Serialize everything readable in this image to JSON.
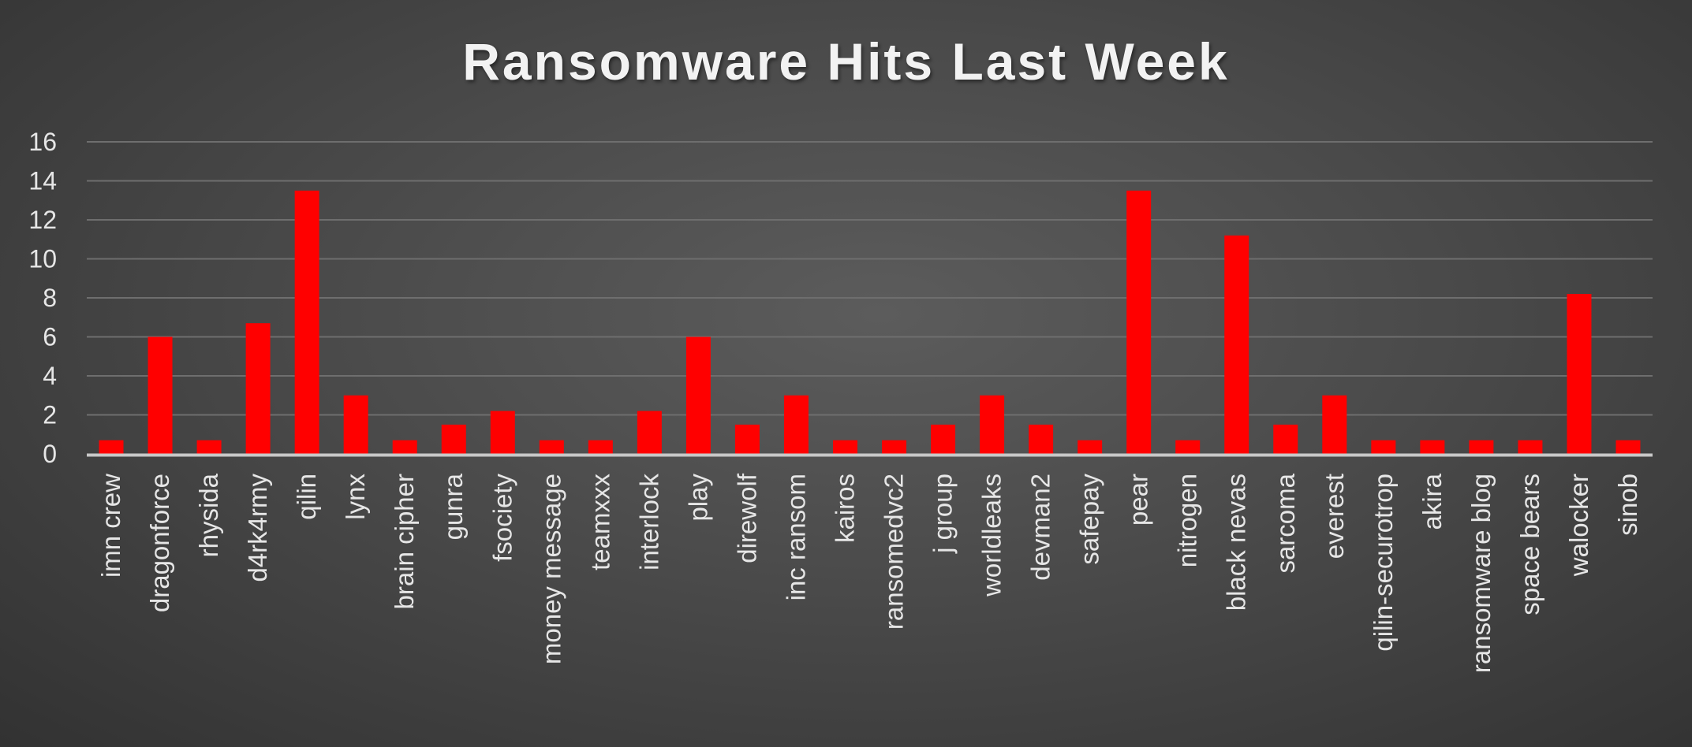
{
  "chart_data": {
    "type": "bar",
    "title": "Ransomware Hits Last Week",
    "xlabel": "",
    "ylabel": "",
    "ylim": [
      0,
      16
    ],
    "yticks": [
      0,
      2,
      4,
      6,
      8,
      10,
      12,
      14,
      16
    ],
    "grid": true,
    "legend": "none",
    "bar_color": "#ff0000",
    "categories": [
      "imn crew",
      "dragonforce",
      "rhysida",
      "d4rk4rmy",
      "qilin",
      "lynx",
      "brain cipher",
      "gunra",
      "fsociety",
      "money message",
      "teamxxx",
      "interlock",
      "play",
      "direwolf",
      "inc ransom",
      "kairos",
      "ransomedvc2",
      "j group",
      "worldleaks",
      "devman2",
      "safepay",
      "pear",
      "nitrogen",
      "black nevas",
      "sarcoma",
      "everest",
      "qilin-securotrop",
      "akira",
      "ransomware blog",
      "space bears",
      "walocker",
      "sinob"
    ],
    "values": [
      0.7,
      6,
      0.7,
      6.7,
      13.5,
      3,
      0.7,
      1.5,
      2.2,
      0.7,
      0.7,
      2.2,
      6,
      1.5,
      3,
      0.7,
      0.7,
      1.5,
      3,
      1.5,
      0.7,
      13.5,
      0.7,
      11.2,
      1.5,
      3,
      0.7,
      0.7,
      0.7,
      0.7,
      8.2,
      0.7
    ]
  }
}
